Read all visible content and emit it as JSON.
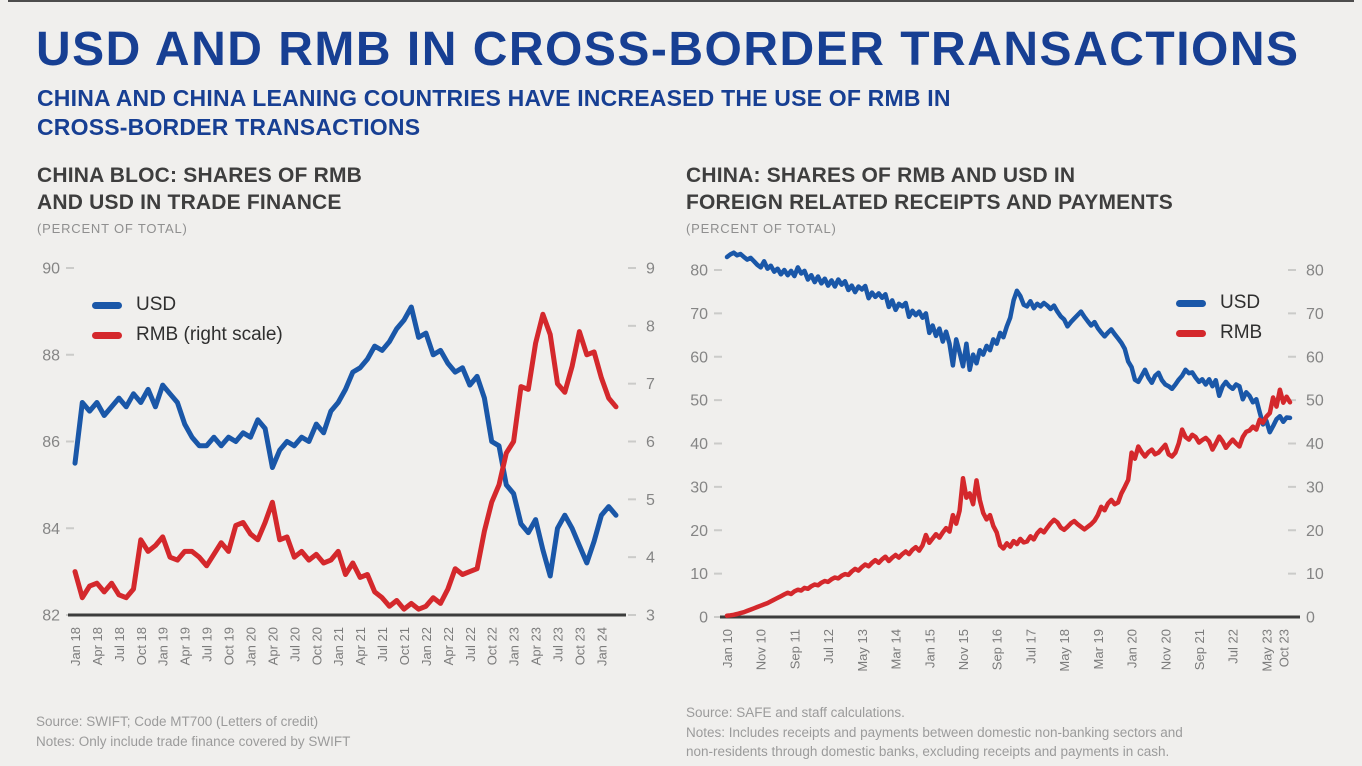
{
  "colors": {
    "usd": "#1a57a8",
    "rmb": "#d4282c",
    "navy": "#173f93"
  },
  "header": {
    "title": "USD AND RMB IN CROSS-BORDER TRANSACTIONS",
    "subtitle_lines": [
      "CHINA AND CHINA LEANING COUNTRIES HAVE INCREASED THE USE OF RMB IN",
      "CROSS-BORDER TRANSACTIONS"
    ]
  },
  "chart_data": [
    {
      "type": "line",
      "title_lines": [
        "CHINA BLOC: SHARES OF RMB",
        "AND USD IN TRADE FINANCE"
      ],
      "subtitle": "(PERCENT OF TOTAL)",
      "legend": [
        {
          "label": "USD",
          "color_key": "usd"
        },
        {
          "label": "RMB (right scale)",
          "color_key": "rmb"
        }
      ],
      "y_left": {
        "min": 82,
        "max": 90,
        "ticks": [
          90,
          88,
          86,
          84,
          82
        ]
      },
      "y_right": {
        "min": 3,
        "max": 9,
        "ticks": [
          9,
          8,
          7,
          6,
          5,
          4,
          3
        ]
      },
      "x_ticks": [
        {
          "label": "Jan 18",
          "m": 0
        },
        {
          "label": "Apr 18",
          "m": 3
        },
        {
          "label": "Jul 18",
          "m": 6
        },
        {
          "label": "Oct 18",
          "m": 9
        },
        {
          "label": "Jan 19",
          "m": 12
        },
        {
          "label": "Apr 19",
          "m": 15
        },
        {
          "label": "Jul 19",
          "m": 18
        },
        {
          "label": "Oct 19",
          "m": 21
        },
        {
          "label": "Jan 20",
          "m": 24
        },
        {
          "label": "Apr 20",
          "m": 27
        },
        {
          "label": "Jul 20",
          "m": 30
        },
        {
          "label": "Oct 20",
          "m": 33
        },
        {
          "label": "Jan 21",
          "m": 36
        },
        {
          "label": "Apr 21",
          "m": 39
        },
        {
          "label": "Jul 21",
          "m": 42
        },
        {
          "label": "Oct 21",
          "m": 45
        },
        {
          "label": "Jan 22",
          "m": 48
        },
        {
          "label": "Apr 22",
          "m": 51
        },
        {
          "label": "Jul 22",
          "m": 54
        },
        {
          "label": "Oct 22",
          "m": 57
        },
        {
          "label": "Jan 23",
          "m": 60
        },
        {
          "label": "Apr 23",
          "m": 63
        },
        {
          "label": "Jul 23",
          "m": 66
        },
        {
          "label": "Oct 23",
          "m": 69
        },
        {
          "label": "Jan 24",
          "m": 72
        }
      ],
      "series": [
        {
          "name": "USD",
          "axis": "left",
          "color_key": "usd",
          "values": [
            85.5,
            86.9,
            86.7,
            86.9,
            86.6,
            86.8,
            87.0,
            86.8,
            87.1,
            86.9,
            87.2,
            86.8,
            87.3,
            87.1,
            86.9,
            86.4,
            86.1,
            85.9,
            85.9,
            86.1,
            85.9,
            86.1,
            86.0,
            86.2,
            86.1,
            86.5,
            86.3,
            85.4,
            85.8,
            86.0,
            85.9,
            86.1,
            86.0,
            86.4,
            86.2,
            86.7,
            86.9,
            87.2,
            87.6,
            87.7,
            87.9,
            88.2,
            88.1,
            88.3,
            88.6,
            88.8,
            89.1,
            88.4,
            88.5,
            88.0,
            88.1,
            87.8,
            87.6,
            87.7,
            87.3,
            87.5,
            87.0,
            86.0,
            85.9,
            85.0,
            84.8,
            84.1,
            83.9,
            84.2,
            83.5,
            82.9,
            84.0,
            84.3,
            84.0,
            83.6,
            83.2,
            83.7,
            84.3,
            84.5,
            84.3
          ]
        },
        {
          "name": "RMB (right scale)",
          "axis": "right",
          "color_key": "rmb",
          "values": [
            3.75,
            3.3,
            3.5,
            3.55,
            3.4,
            3.55,
            3.35,
            3.3,
            3.45,
            4.3,
            4.1,
            4.2,
            4.35,
            4.0,
            3.95,
            4.1,
            4.1,
            4.0,
            3.85,
            4.05,
            4.25,
            4.1,
            4.55,
            4.6,
            4.4,
            4.3,
            4.6,
            4.95,
            4.3,
            4.35,
            4.0,
            4.1,
            3.95,
            4.05,
            3.9,
            3.95,
            4.1,
            3.7,
            3.9,
            3.65,
            3.7,
            3.4,
            3.3,
            3.15,
            3.25,
            3.1,
            3.2,
            3.1,
            3.15,
            3.3,
            3.2,
            3.45,
            3.8,
            3.7,
            3.75,
            3.8,
            4.45,
            4.95,
            5.25,
            5.8,
            6.0,
            6.95,
            6.9,
            7.7,
            8.2,
            7.85,
            7.0,
            6.85,
            7.3,
            7.9,
            7.5,
            7.55,
            7.1,
            6.75,
            6.6
          ]
        }
      ],
      "source": "Source: SWIFT; Code MT700 (Letters of credit)",
      "notes": [
        "Notes: Only include trade finance covered by SWIFT"
      ]
    },
    {
      "type": "line",
      "title_lines": [
        "CHINA: SHARES OF RMB AND USD IN",
        "FOREIGN RELATED RECEIPTS AND PAYMENTS"
      ],
      "subtitle": "(PERCENT OF TOTAL)",
      "legend": [
        {
          "label": "USD",
          "color_key": "usd"
        },
        {
          "label": "RMB",
          "color_key": "rmb"
        }
      ],
      "y_left": {
        "min": 0,
        "max": 80,
        "ticks": [
          80,
          70,
          60,
          50,
          40,
          30,
          20,
          10,
          0
        ]
      },
      "y_right": {
        "min": 0,
        "max": 80,
        "ticks": [
          80,
          70,
          60,
          50,
          40,
          30,
          20,
          10,
          0
        ]
      },
      "x_ticks": [
        {
          "label": "Jan 10",
          "m": 0
        },
        {
          "label": "Nov 10",
          "m": 10
        },
        {
          "label": "Sep 11",
          "m": 20
        },
        {
          "label": "Jul 12",
          "m": 30
        },
        {
          "label": "May 13",
          "m": 40
        },
        {
          "label": "Mar 14",
          "m": 50
        },
        {
          "label": "Jan 15",
          "m": 60
        },
        {
          "label": "Nov 15",
          "m": 70
        },
        {
          "label": "Sep 16",
          "m": 80
        },
        {
          "label": "Jul 17",
          "m": 90
        },
        {
          "label": "May 18",
          "m": 100
        },
        {
          "label": "Mar 19",
          "m": 110
        },
        {
          "label": "Jan 20",
          "m": 120
        },
        {
          "label": "Nov 20",
          "m": 130
        },
        {
          "label": "Sep 21",
          "m": 140
        },
        {
          "label": "Jul 22",
          "m": 150
        },
        {
          "label": "May 23",
          "m": 160
        },
        {
          "label": "Oct 23",
          "m": 165
        }
      ],
      "series": [
        {
          "name": "USD",
          "axis": "left",
          "color_key": "usd",
          "values": [
            83.0,
            83.6,
            84.0,
            83.4,
            83.7,
            83.0,
            82.4,
            82.8,
            82.0,
            81.2,
            80.6,
            82.0,
            80.3,
            81.0,
            79.6,
            80.3,
            79.0,
            80.0,
            78.8,
            79.8,
            78.6,
            80.6,
            79.2,
            79.8,
            77.8,
            78.8,
            77.2,
            78.5,
            76.9,
            78.0,
            76.4,
            77.6,
            76.2,
            77.8,
            76.6,
            77.4,
            75.4,
            76.4,
            74.9,
            76.2,
            75.5,
            76.3,
            73.5,
            74.8,
            73.8,
            74.6,
            73.6,
            74.4,
            71.5,
            73.0,
            70.8,
            72.2,
            71.6,
            72.4,
            69.2,
            70.6,
            69.6,
            70.4,
            69.0,
            70.0,
            65.5,
            67.2,
            64.8,
            66.5,
            63.5,
            65.8,
            63.0,
            58.0,
            64.0,
            61.0,
            57.8,
            63.0,
            57.0,
            60.5,
            58.5,
            61.5,
            60.5,
            62.5,
            61.5,
            64.0,
            63.0,
            65.5,
            64.5,
            67.0,
            69.0,
            73.0,
            75.2,
            74.0,
            72.0,
            71.6,
            72.8,
            71.2,
            72.2,
            71.6,
            72.4,
            71.8,
            71.0,
            71.8,
            70.4,
            69.3,
            68.6,
            67.0,
            68.0,
            68.8,
            69.6,
            70.4,
            69.2,
            68.2,
            67.2,
            68.0,
            66.6,
            65.6,
            64.7,
            65.6,
            66.3,
            65.2,
            64.2,
            63.2,
            61.8,
            58.9,
            57.6,
            54.7,
            54.2,
            55.6,
            57.0,
            55.2,
            54.0,
            55.6,
            56.3,
            54.6,
            53.6,
            53.2,
            52.6,
            53.6,
            54.7,
            55.6,
            57.0,
            56.2,
            56.4,
            55.2,
            54.2,
            54.8,
            53.6,
            54.8,
            53.2,
            54.6,
            51.0,
            53.2,
            54.2,
            53.2,
            52.6,
            53.6,
            53.2,
            50.2,
            51.8,
            51.0,
            49.5,
            50.2,
            47.2,
            44.4,
            45.2,
            42.6,
            44.0,
            45.6,
            46.3,
            45.0,
            46.0,
            45.9
          ]
        },
        {
          "name": "RMB",
          "axis": "right",
          "color_key": "rmb",
          "values": [
            0.3,
            0.4,
            0.5,
            0.7,
            0.9,
            1.1,
            1.4,
            1.7,
            2.0,
            2.3,
            2.6,
            2.9,
            3.2,
            3.6,
            4.0,
            4.4,
            4.8,
            5.2,
            5.6,
            5.3,
            5.9,
            6.3,
            6.1,
            6.7,
            6.5,
            7.1,
            7.5,
            7.3,
            7.9,
            8.3,
            8.1,
            8.7,
            9.1,
            8.9,
            9.5,
            9.9,
            9.7,
            10.5,
            11.1,
            10.7,
            11.5,
            12.1,
            11.7,
            12.5,
            13.1,
            12.5,
            13.3,
            13.9,
            12.9,
            13.7,
            14.3,
            13.7,
            14.5,
            15.1,
            14.5,
            15.5,
            16.1,
            15.3,
            16.5,
            18.9,
            17.1,
            18.1,
            19.1,
            18.3,
            19.5,
            20.5,
            19.7,
            23.5,
            21.5,
            24.5,
            32.0,
            27.5,
            28.5,
            26.0,
            31.5,
            27.0,
            24.0,
            22.5,
            23.5,
            21.0,
            19.5,
            16.5,
            15.8,
            17.0,
            16.2,
            17.5,
            16.8,
            18.0,
            17.2,
            17.4,
            18.6,
            17.9,
            19.3,
            20.1,
            19.5,
            20.6,
            21.6,
            22.4,
            21.8,
            20.6,
            20.1,
            20.8,
            21.6,
            22.1,
            21.4,
            20.8,
            20.2,
            20.8,
            21.4,
            22.2,
            23.5,
            25.4,
            24.6,
            26.2,
            27.0,
            26.0,
            26.4,
            28.5,
            30.0,
            31.6,
            37.9,
            36.5,
            39.3,
            38.0,
            37.0,
            38.0,
            38.6,
            37.5,
            37.9,
            38.8,
            39.7,
            37.5,
            37.0,
            37.9,
            40.0,
            43.2,
            41.5,
            40.9,
            42.0,
            41.5,
            40.2,
            40.8,
            41.3,
            40.5,
            38.6,
            40.0,
            41.6,
            40.5,
            39.0,
            40.0,
            40.9,
            40.0,
            39.3,
            41.5,
            42.7,
            43.0,
            43.9,
            43.2,
            45.5,
            44.8,
            46.2,
            47.0,
            50.6,
            48.5,
            52.4,
            49.4,
            50.8,
            49.5
          ]
        }
      ],
      "source": "Source: SAFE and staff calculations.",
      "notes": [
        "Notes: Includes receipts and payments between domestic non-banking sectors and",
        "non-residents through domestic banks, excluding receipts and payments in cash."
      ]
    }
  ]
}
